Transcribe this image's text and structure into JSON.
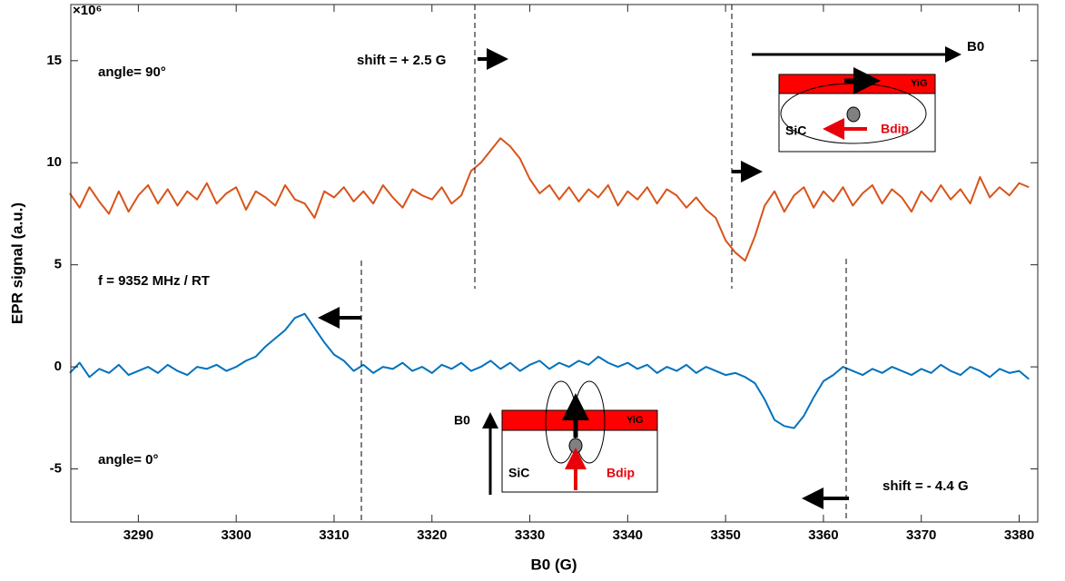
{
  "chart_data": {
    "type": "line",
    "xlabel": "B0 (G)",
    "ylabel": "EPR signal (a.u.)",
    "y_multiplier": "×10⁶",
    "xlim": [
      3283.1,
      3381.9
    ],
    "ylim": [
      -7.6,
      17.75
    ],
    "xticks": [
      3290,
      3300,
      3310,
      3320,
      3330,
      3340,
      3350,
      3360,
      3370,
      3380
    ],
    "yticks": [
      -5,
      0,
      5,
      10,
      15
    ],
    "x": [
      3283,
      3284,
      3285,
      3286,
      3287,
      3288,
      3289,
      3290,
      3291,
      3292,
      3293,
      3294,
      3295,
      3296,
      3297,
      3298,
      3299,
      3300,
      3301,
      3302,
      3303,
      3304,
      3305,
      3306,
      3307,
      3308,
      3309,
      3310,
      3311,
      3312,
      3313,
      3314,
      3315,
      3316,
      3317,
      3318,
      3319,
      3320,
      3321,
      3322,
      3323,
      3324,
      3325,
      3326,
      3327,
      3328,
      3329,
      3330,
      3331,
      3332,
      3333,
      3334,
      3335,
      3336,
      3337,
      3338,
      3339,
      3340,
      3341,
      3342,
      3343,
      3344,
      3345,
      3346,
      3347,
      3348,
      3349,
      3350,
      3351,
      3352,
      3353,
      3354,
      3355,
      3356,
      3357,
      3358,
      3359,
      3360,
      3361,
      3362,
      3363,
      3364,
      3365,
      3366,
      3367,
      3368,
      3369,
      3370,
      3371,
      3372,
      3373,
      3374,
      3375,
      3376,
      3377,
      3378,
      3379,
      3380,
      3381
    ],
    "series": [
      {
        "name": "angle= 90°",
        "color": "#d95319",
        "values": [
          8.5,
          7.8,
          8.8,
          8.1,
          7.5,
          8.6,
          7.6,
          8.4,
          8.9,
          8.0,
          8.7,
          7.9,
          8.6,
          8.2,
          9.0,
          8.0,
          8.5,
          8.8,
          7.7,
          8.6,
          8.3,
          7.9,
          8.9,
          8.2,
          8.0,
          7.3,
          8.6,
          8.3,
          8.8,
          8.1,
          8.6,
          8.0,
          8.9,
          8.3,
          7.8,
          8.7,
          8.4,
          8.2,
          8.8,
          8.0,
          8.4,
          9.6,
          10.0,
          10.6,
          11.2,
          10.8,
          10.2,
          9.2,
          8.5,
          8.9,
          8.2,
          8.8,
          8.1,
          8.7,
          8.3,
          8.9,
          7.9,
          8.6,
          8.2,
          8.8,
          8.0,
          8.7,
          8.4,
          7.8,
          8.3,
          7.7,
          7.3,
          6.2,
          5.6,
          5.2,
          6.4,
          7.9,
          8.6,
          7.6,
          8.4,
          8.8,
          7.8,
          8.6,
          8.1,
          8.8,
          7.9,
          8.5,
          8.9,
          8.0,
          8.7,
          8.3,
          7.6,
          8.6,
          8.1,
          8.9,
          8.2,
          8.7,
          8.0,
          9.3,
          8.3,
          8.8,
          8.4,
          9.0,
          8.8
        ]
      },
      {
        "name": "angle= 0°",
        "color": "#0072bd",
        "values": [
          -0.3,
          0.2,
          -0.5,
          -0.1,
          -0.3,
          0.1,
          -0.4,
          -0.2,
          0.0,
          -0.3,
          0.1,
          -0.2,
          -0.4,
          0.0,
          -0.1,
          0.1,
          -0.2,
          0.0,
          0.3,
          0.5,
          1.0,
          1.4,
          1.8,
          2.4,
          2.6,
          1.9,
          1.2,
          0.6,
          0.3,
          -0.2,
          0.1,
          -0.3,
          0.0,
          -0.1,
          0.2,
          -0.2,
          0.0,
          -0.3,
          0.1,
          -0.1,
          0.2,
          -0.2,
          0.0,
          0.3,
          -0.1,
          0.2,
          -0.2,
          0.1,
          0.3,
          -0.1,
          0.2,
          0.0,
          0.3,
          0.1,
          0.5,
          0.2,
          0.0,
          0.2,
          -0.1,
          0.1,
          -0.3,
          0.0,
          -0.2,
          0.1,
          -0.3,
          0.0,
          -0.2,
          -0.4,
          -0.3,
          -0.5,
          -0.8,
          -1.6,
          -2.6,
          -2.9,
          -3.0,
          -2.4,
          -1.5,
          -0.7,
          -0.4,
          0.0,
          -0.2,
          -0.4,
          -0.1,
          -0.3,
          0.0,
          -0.2,
          -0.4,
          -0.1,
          -0.3,
          0.1,
          -0.2,
          -0.4,
          0.0,
          -0.2,
          -0.5,
          -0.1,
          -0.3,
          -0.2,
          -0.6
        ]
      }
    ],
    "annotations": [
      "shift = + 2.5 G",
      "f = 9352 MHz  / RT",
      "shift = - 4.4 G"
    ],
    "insets": [
      {
        "field": "B0",
        "film": "YiG",
        "substrate": "SiC",
        "dipole": "Bdip"
      },
      {
        "field": "B0",
        "film": "YiG",
        "substrate": "SiC",
        "dipole": "Bdip"
      }
    ]
  }
}
